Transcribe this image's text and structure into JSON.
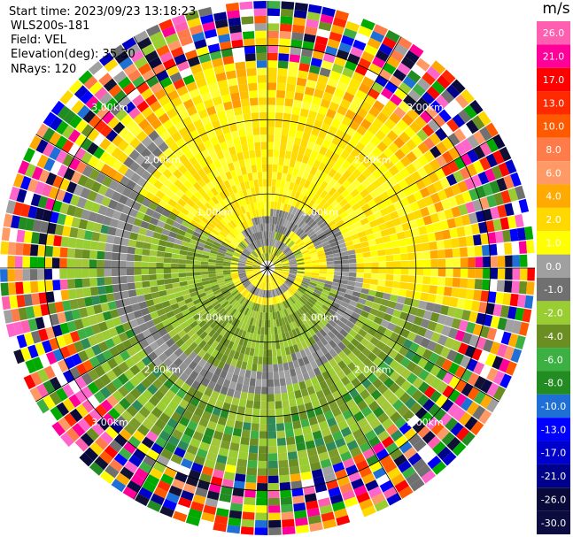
{
  "header": {
    "start_time": "Start time: 2023/09/23 13:18:23",
    "instrument": "WLS200s-181",
    "field": "Field: VEL",
    "elevation": "Elevation(deg): 35.30",
    "nrays": "NRays: 120"
  },
  "chart_data": {
    "type": "polar-ppi",
    "field": "VEL",
    "units": "m/s",
    "nrays": 120,
    "elevation_deg": 35.3,
    "range_rings_km": [
      1.0,
      2.0,
      3.0
    ],
    "ring_labels": [
      "1.00km",
      "2.00km",
      "3.00km"
    ],
    "spokes_deg": [
      0,
      30,
      60,
      90,
      120,
      150,
      180,
      210,
      240,
      270,
      300,
      330
    ],
    "max_range_km": 3.6,
    "colorbar": {
      "unit": "m/s",
      "ticks": [
        "26.0",
        "21.0",
        "17.0",
        "13.0",
        "10.0",
        "8.0",
        "6.0",
        "4.0",
        "2.0",
        "1.0",
        "0.0",
        "-1.0",
        "-2.0",
        "-4.0",
        "-6.0",
        "-8.0",
        "-10.0",
        "-13.0",
        "-17.0",
        "-21.0",
        "-26.0",
        "-30.0"
      ],
      "colors": [
        "#ff5fb0",
        "#ff0099",
        "#ff0000",
        "#ff2a00",
        "#ff5a00",
        "#ff7b4a",
        "#ff9a66",
        "#ffaa00",
        "#ffd800",
        "#ffff00",
        "#a0a0a0",
        "#707070",
        "#9acd32",
        "#6b8e23",
        "#3cb043",
        "#228b22",
        "#1e6fd6",
        "#0000ff",
        "#0000cc",
        "#00008b",
        "#0a0a3a",
        "#0c0c40"
      ]
    },
    "structure": [
      {
        "region": "inner",
        "range_km": [
          0.0,
          0.55
        ],
        "pattern": "yellow core with gray vortex band"
      },
      {
        "region": "north",
        "velocity_class": "positive (yellow/orange)"
      },
      {
        "region": "south",
        "velocity_class": "negative (green/olive)"
      },
      {
        "region": "spiral",
        "velocity_class": "near zero (gray)"
      },
      {
        "region": "outer",
        "range_km": [
          2.6,
          3.6
        ],
        "pattern": "noisy multicolor"
      }
    ]
  }
}
